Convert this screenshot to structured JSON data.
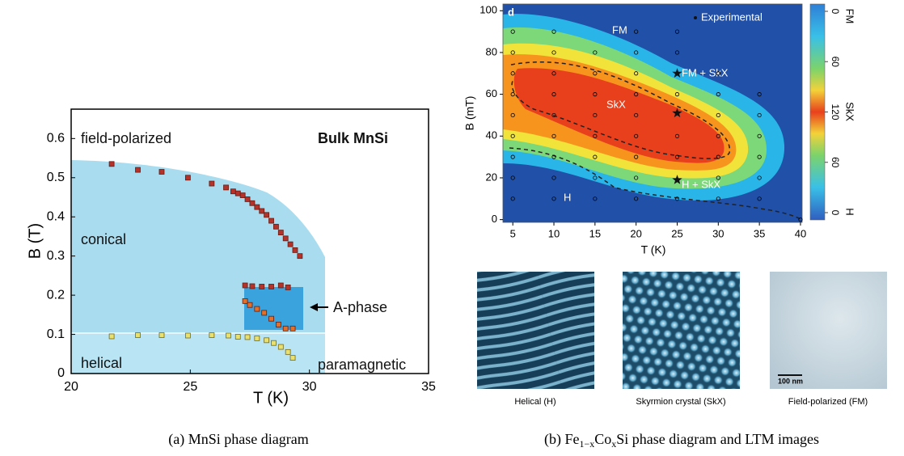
{
  "chart_data": [
    {
      "type": "scatter",
      "caption": "(a) MnSi phase diagram",
      "xlabel": "T (K)",
      "ylabel": "B (T)",
      "xlim": [
        20,
        35
      ],
      "ylim": [
        0,
        0.675
      ],
      "xticks": [
        20,
        25,
        30,
        35
      ],
      "yticks": [
        0,
        0.1,
        0.2,
        0.3,
        0.4,
        0.5,
        0.6
      ],
      "annotations": [
        "field-polarized",
        "Bulk MnSi",
        "conical",
        "helical",
        "paramagnetic",
        "A-phase"
      ],
      "series": [
        {
          "color": "#b5322a",
          "x": [
            21.7,
            22.8,
            23.8,
            24.9,
            25.9,
            26.5,
            26.8,
            27.0,
            27.2,
            27.4,
            27.6,
            27.8,
            28.0,
            28.2,
            28.4,
            28.6,
            28.8,
            29.0,
            29.2,
            29.4,
            29.6
          ],
          "values": [
            0.535,
            0.52,
            0.515,
            0.5,
            0.485,
            0.475,
            0.465,
            0.46,
            0.455,
            0.445,
            0.435,
            0.425,
            0.415,
            0.405,
            0.39,
            0.375,
            0.36,
            0.345,
            0.33,
            0.315,
            0.3
          ]
        },
        {
          "color": "#b5322a",
          "x": [
            27.3,
            27.6,
            28.0,
            28.4,
            28.8,
            29.1
          ],
          "values": [
            0.225,
            0.223,
            0.222,
            0.222,
            0.225,
            0.22
          ]
        },
        {
          "color": "#e0702a",
          "x": [
            27.3,
            27.5,
            27.8,
            28.1,
            28.4,
            28.7,
            29.0,
            29.3
          ],
          "values": [
            0.185,
            0.175,
            0.165,
            0.155,
            0.14,
            0.125,
            0.115,
            0.115
          ]
        },
        {
          "color": "#e8e070",
          "x": [
            21.7,
            22.8,
            23.8,
            24.9,
            25.9,
            26.6,
            27.0,
            27.4,
            27.8,
            28.2,
            28.5,
            28.8,
            29.1,
            29.3
          ],
          "values": [
            0.095,
            0.098,
            0.098,
            0.097,
            0.098,
            0.097,
            0.094,
            0.093,
            0.09,
            0.085,
            0.078,
            0.068,
            0.055,
            0.04
          ]
        }
      ]
    },
    {
      "type": "contour",
      "caption": {
        "prefix": "(b) Fe",
        "sub1": "1−x",
        "mid": "Co",
        "sub2": "x",
        "suffix": "Si phase diagram and LTM images"
      },
      "xlabel": "T (K)",
      "ylabel": "B (mT)",
      "xlim": [
        3.8,
        40.2
      ],
      "ylim": [
        -1.3,
        103.2
      ],
      "xticks": [
        5,
        10,
        15,
        20,
        25,
        30,
        35,
        40
      ],
      "yticks": [
        0,
        20,
        40,
        60,
        80,
        100
      ],
      "annotations": [
        "d",
        "FM",
        "Experimental",
        "FM + SkX",
        "SkX",
        "H + SkX",
        "H"
      ],
      "colorbar_ticks": [
        0,
        60,
        120,
        60,
        0
      ],
      "colorbar_labels": [
        "FM",
        "SkX",
        "H"
      ],
      "series": [
        {
          "color": "#000000",
          "x": [
            5,
            5,
            5,
            5,
            5,
            5,
            5,
            5,
            5,
            10,
            10,
            10,
            10,
            10,
            10,
            10,
            10,
            10,
            15,
            15,
            15,
            15,
            15,
            15,
            15,
            15,
            20,
            20,
            20,
            20,
            20,
            20,
            20,
            20,
            20,
            25,
            25,
            25,
            25,
            25,
            25,
            30,
            30,
            30,
            30,
            30,
            30,
            30,
            35,
            35,
            35,
            35,
            35,
            35,
            40
          ],
          "values": [
            10,
            20,
            30,
            40,
            50,
            60,
            70,
            80,
            90,
            10,
            20,
            30,
            40,
            50,
            60,
            70,
            80,
            90,
            10,
            20,
            30,
            40,
            50,
            60,
            70,
            80,
            10,
            20,
            30,
            40,
            50,
            60,
            70,
            80,
            90,
            10,
            30,
            40,
            60,
            80,
            90,
            10,
            20,
            30,
            40,
            50,
            60,
            70,
            10,
            20,
            30,
            40,
            50,
            60,
            0
          ]
        },
        {
          "color": "#111111",
          "x": [
            25,
            25,
            25
          ],
          "values": [
            70,
            51,
            19
          ]
        }
      ]
    }
  ],
  "images": [
    {
      "caption": "Helical (H)"
    },
    {
      "caption": "Skyrmion crystal (SkX)"
    },
    {
      "caption": "Field-polarized (FM)",
      "scale_bar": "100 nm"
    }
  ]
}
